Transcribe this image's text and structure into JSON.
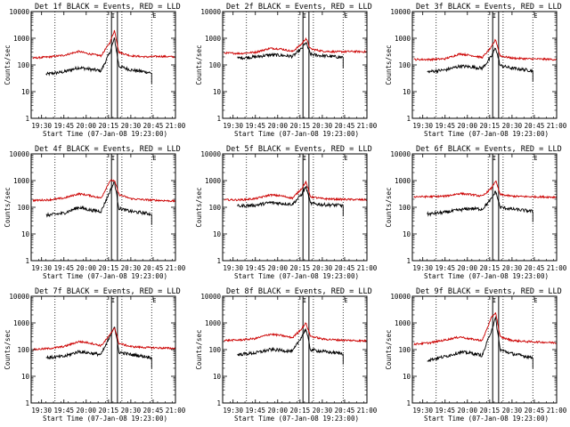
{
  "figure": {
    "ylabel": "Counts/sec",
    "xlabel": "Start Time (07-Jan-08 19:23:00)",
    "colors": {
      "events": "#000000",
      "lld": "#cc0000",
      "axis": "#000000"
    }
  },
  "chart_data": [
    {
      "type": "line",
      "title": "Det 1f BLACK = Events, RED = LLD",
      "xlabel": "Start Time (07-Jan-08 19:23:00)",
      "ylabel": "Counts/sec",
      "yscale": "log",
      "ylim": [
        1,
        10000
      ],
      "xlim": [
        "19:23",
        "21:00"
      ],
      "yticks": [
        "1",
        "10",
        "100",
        "1000",
        "10000"
      ],
      "xticks": [
        "19:30",
        "19:45",
        "20:00",
        "20:15",
        "20:30",
        "20:45",
        "21:00"
      ],
      "series": [
        {
          "name": "Events",
          "color": "#000000",
          "x": [
            "19:33",
            "19:45",
            "19:55",
            "20:02",
            "20:10",
            "20:16",
            "20:19",
            "20:22",
            "20:30",
            "20:40",
            "20:44"
          ],
          "values": [
            45,
            55,
            80,
            70,
            60,
            300,
            1000,
            90,
            65,
            55,
            50
          ]
        },
        {
          "name": "LLD",
          "color": "#cc0000",
          "x": [
            "19:24",
            "19:35",
            "19:45",
            "19:55",
            "20:02",
            "20:10",
            "20:16",
            "20:19",
            "20:22",
            "20:30",
            "20:40",
            "20:50",
            "21:00"
          ],
          "values": [
            180,
            200,
            230,
            320,
            260,
            220,
            700,
            2000,
            300,
            220,
            200,
            210,
            200
          ]
        }
      ]
    },
    {
      "type": "line",
      "title": "Det 2f BLACK = Events, RED = LLD",
      "xlabel": "Start Time (07-Jan-08 19:23:00)",
      "ylabel": "Counts/sec",
      "yscale": "log",
      "ylim": [
        1,
        10000
      ],
      "xlim": [
        "19:23",
        "21:00"
      ],
      "yticks": [
        "1",
        "10",
        "100",
        "1000",
        "10000"
      ],
      "xticks": [
        "19:30",
        "19:45",
        "20:00",
        "20:15",
        "20:30",
        "20:45",
        "21:00"
      ],
      "series": [
        {
          "name": "Events",
          "color": "#000000",
          "x": [
            "19:33",
            "19:45",
            "19:55",
            "20:02",
            "20:10",
            "20:16",
            "20:19",
            "20:22",
            "20:30",
            "20:40",
            "20:44"
          ],
          "values": [
            180,
            200,
            240,
            230,
            210,
            400,
            700,
            250,
            220,
            200,
            190
          ]
        },
        {
          "name": "LLD",
          "color": "#cc0000",
          "x": [
            "19:24",
            "19:35",
            "19:45",
            "19:55",
            "20:02",
            "20:10",
            "20:16",
            "20:19",
            "20:22",
            "20:30",
            "20:40",
            "20:50",
            "21:00"
          ],
          "values": [
            280,
            270,
            300,
            420,
            400,
            320,
            600,
            1000,
            400,
            330,
            310,
            320,
            310
          ]
        }
      ]
    },
    {
      "type": "line",
      "title": "Det 3f BLACK = Events, RED = LLD",
      "xlabel": "Start Time (07-Jan-08 19:23:00)",
      "ylabel": "Counts/sec",
      "yscale": "log",
      "ylim": [
        1,
        10000
      ],
      "xlim": [
        "19:23",
        "21:00"
      ],
      "yticks": [
        "1",
        "10",
        "100",
        "1000",
        "10000"
      ],
      "xticks": [
        "19:30",
        "19:45",
        "20:00",
        "20:15",
        "20:30",
        "20:45",
        "21:00"
      ],
      "series": [
        {
          "name": "Events",
          "color": "#000000",
          "x": [
            "19:33",
            "19:45",
            "19:55",
            "20:02",
            "20:10",
            "20:16",
            "20:19",
            "20:22",
            "20:30",
            "20:40",
            "20:44"
          ],
          "values": [
            55,
            65,
            90,
            85,
            75,
            200,
            450,
            95,
            75,
            65,
            60
          ]
        },
        {
          "name": "LLD",
          "color": "#cc0000",
          "x": [
            "19:24",
            "19:35",
            "19:45",
            "19:55",
            "20:02",
            "20:10",
            "20:16",
            "20:19",
            "20:22",
            "20:30",
            "20:40",
            "20:50",
            "21:00"
          ],
          "values": [
            160,
            160,
            170,
            260,
            230,
            190,
            450,
            900,
            220,
            180,
            170,
            165,
            160
          ]
        }
      ]
    },
    {
      "type": "line",
      "title": "Det 4f BLACK = Events, RED = LLD",
      "xlabel": "Start Time (07-Jan-08 19:23:00)",
      "ylabel": "Counts/sec",
      "yscale": "log",
      "ylim": [
        1,
        10000
      ],
      "xlim": [
        "19:23",
        "21:00"
      ],
      "yticks": [
        "1",
        "10",
        "100",
        "1000",
        "10000"
      ],
      "xticks": [
        "19:30",
        "19:45",
        "20:00",
        "20:15",
        "20:30",
        "20:45",
        "21:00"
      ],
      "series": [
        {
          "name": "Events",
          "color": "#000000",
          "x": [
            "19:33",
            "19:45",
            "19:55",
            "20:02",
            "20:10",
            "20:16",
            "20:19",
            "20:22",
            "20:30",
            "20:40",
            "20:44"
          ],
          "values": [
            50,
            60,
            100,
            80,
            70,
            400,
            900,
            90,
            70,
            60,
            55
          ]
        },
        {
          "name": "LLD",
          "color": "#cc0000",
          "x": [
            "19:24",
            "19:35",
            "19:45",
            "19:55",
            "20:02",
            "20:10",
            "20:16",
            "20:19",
            "20:22",
            "20:30",
            "20:40",
            "20:50",
            "21:00"
          ],
          "values": [
            180,
            190,
            220,
            320,
            280,
            220,
            1000,
            1000,
            300,
            210,
            190,
            180,
            170
          ]
        }
      ]
    },
    {
      "type": "line",
      "title": "Det 5f BLACK = Events, RED = LLD",
      "xlabel": "Start Time (07-Jan-08 19:23:00)",
      "ylabel": "Counts/sec",
      "yscale": "log",
      "ylim": [
        1,
        10000
      ],
      "xlim": [
        "19:23",
        "21:00"
      ],
      "yticks": [
        "1",
        "10",
        "100",
        "1000",
        "10000"
      ],
      "xticks": [
        "19:30",
        "19:45",
        "20:00",
        "20:15",
        "20:30",
        "20:45",
        "21:00"
      ],
      "series": [
        {
          "name": "Events",
          "color": "#000000",
          "x": [
            "19:33",
            "19:45",
            "19:55",
            "20:02",
            "20:10",
            "20:16",
            "20:19",
            "20:22",
            "20:30",
            "20:40",
            "20:44"
          ],
          "values": [
            110,
            120,
            150,
            140,
            130,
            300,
            600,
            140,
            125,
            120,
            115
          ]
        },
        {
          "name": "LLD",
          "color": "#cc0000",
          "x": [
            "19:24",
            "19:35",
            "19:45",
            "19:55",
            "20:02",
            "20:10",
            "20:16",
            "20:19",
            "20:22",
            "20:30",
            "20:40",
            "20:50",
            "21:00"
          ],
          "values": [
            190,
            190,
            210,
            290,
            270,
            220,
            500,
            900,
            250,
            210,
            200,
            195,
            190
          ]
        }
      ]
    },
    {
      "type": "line",
      "title": "Det 6f BLACK = Events, RED = LLD",
      "xlabel": "Start Time (07-Jan-08 19:23:00)",
      "ylabel": "Counts/sec",
      "yscale": "log",
      "ylim": [
        1,
        10000
      ],
      "xlim": [
        "19:23",
        "21:00"
      ],
      "yticks": [
        "1",
        "10",
        "100",
        "1000",
        "10000"
      ],
      "xticks": [
        "19:30",
        "19:45",
        "20:00",
        "20:15",
        "20:30",
        "20:45",
        "21:00"
      ],
      "series": [
        {
          "name": "Events",
          "color": "#000000",
          "x": [
            "19:33",
            "19:45",
            "19:55",
            "20:02",
            "20:10",
            "20:16",
            "20:19",
            "20:22",
            "20:30",
            "20:40",
            "20:44"
          ],
          "values": [
            55,
            65,
            80,
            90,
            85,
            200,
            400,
            100,
            85,
            75,
            70
          ]
        },
        {
          "name": "LLD",
          "color": "#cc0000",
          "x": [
            "19:24",
            "19:35",
            "19:45",
            "19:55",
            "20:02",
            "20:10",
            "20:16",
            "20:19",
            "20:22",
            "20:30",
            "20:40",
            "20:50",
            "21:00"
          ],
          "values": [
            250,
            250,
            260,
            330,
            300,
            260,
            500,
            1000,
            300,
            260,
            250,
            245,
            240
          ]
        }
      ]
    },
    {
      "type": "line",
      "title": "Det 7f BLACK = Events, RED = LLD",
      "xlabel": "Start Time (07-Jan-08 19:23:00)",
      "ylabel": "Counts/sec",
      "yscale": "log",
      "ylim": [
        1,
        10000
      ],
      "xlim": [
        "19:23",
        "21:00"
      ],
      "yticks": [
        "1",
        "10",
        "100",
        "1000",
        "10000"
      ],
      "xticks": [
        "19:30",
        "19:45",
        "20:00",
        "20:15",
        "20:30",
        "20:45",
        "21:00"
      ],
      "series": [
        {
          "name": "Events",
          "color": "#000000",
          "x": [
            "19:33",
            "19:45",
            "19:55",
            "20:02",
            "20:10",
            "20:16",
            "20:19",
            "20:22",
            "20:30",
            "20:40",
            "20:44"
          ],
          "values": [
            50,
            55,
            85,
            75,
            65,
            300,
            800,
            80,
            65,
            55,
            50
          ]
        },
        {
          "name": "LLD",
          "color": "#cc0000",
          "x": [
            "19:24",
            "19:35",
            "19:45",
            "19:55",
            "20:02",
            "20:10",
            "20:16",
            "20:19",
            "20:22",
            "20:30",
            "20:40",
            "20:50",
            "21:00"
          ],
          "values": [
            100,
            110,
            130,
            200,
            180,
            140,
            350,
            700,
            170,
            130,
            120,
            115,
            110
          ]
        }
      ]
    },
    {
      "type": "line",
      "title": "Det 8f BLACK = Events, RED = LLD",
      "xlabel": "Start Time (07-Jan-08 19:23:00)",
      "ylabel": "Counts/sec",
      "yscale": "log",
      "ylim": [
        1,
        10000
      ],
      "xlim": [
        "19:23",
        "21:00"
      ],
      "yticks": [
        "1",
        "10",
        "100",
        "1000",
        "10000"
      ],
      "xticks": [
        "19:30",
        "19:45",
        "20:00",
        "20:15",
        "20:30",
        "20:45",
        "21:00"
      ],
      "series": [
        {
          "name": "Events",
          "color": "#000000",
          "x": [
            "19:33",
            "19:45",
            "19:55",
            "20:02",
            "20:10",
            "20:16",
            "20:19",
            "20:22",
            "20:30",
            "20:40",
            "20:44"
          ],
          "values": [
            65,
            75,
            100,
            95,
            85,
            300,
            600,
            100,
            85,
            75,
            70
          ]
        },
        {
          "name": "LLD",
          "color": "#cc0000",
          "x": [
            "19:24",
            "19:35",
            "19:45",
            "19:55",
            "20:02",
            "20:10",
            "20:16",
            "20:19",
            "20:22",
            "20:30",
            "20:40",
            "20:50",
            "21:00"
          ],
          "values": [
            220,
            230,
            260,
            380,
            340,
            280,
            600,
            1000,
            320,
            250,
            230,
            220,
            210
          ]
        }
      ]
    },
    {
      "type": "line",
      "title": "Det 9f BLACK = Events, RED = LLD",
      "xlabel": "Start Time (07-Jan-08 19:23:00)",
      "ylabel": "Counts/sec",
      "yscale": "log",
      "ylim": [
        1,
        10000
      ],
      "xlim": [
        "19:23",
        "21:00"
      ],
      "yticks": [
        "1",
        "10",
        "100",
        "1000",
        "10000"
      ],
      "xticks": [
        "19:30",
        "19:45",
        "20:00",
        "20:15",
        "20:30",
        "20:45",
        "21:00"
      ],
      "series": [
        {
          "name": "Events",
          "color": "#000000",
          "x": [
            "19:33",
            "19:45",
            "19:55",
            "20:02",
            "20:10",
            "20:16",
            "20:19",
            "20:22",
            "20:30",
            "20:40",
            "20:44"
          ],
          "values": [
            40,
            55,
            80,
            75,
            60,
            500,
            1500,
            100,
            70,
            55,
            50
          ]
        },
        {
          "name": "LLD",
          "color": "#cc0000",
          "x": [
            "19:24",
            "19:35",
            "19:45",
            "19:55",
            "20:02",
            "20:10",
            "20:16",
            "20:19",
            "20:22",
            "20:30",
            "20:40",
            "20:50",
            "21:00"
          ],
          "values": [
            160,
            180,
            230,
            300,
            250,
            220,
            1500,
            2500,
            300,
            220,
            200,
            190,
            180
          ]
        }
      ]
    }
  ]
}
